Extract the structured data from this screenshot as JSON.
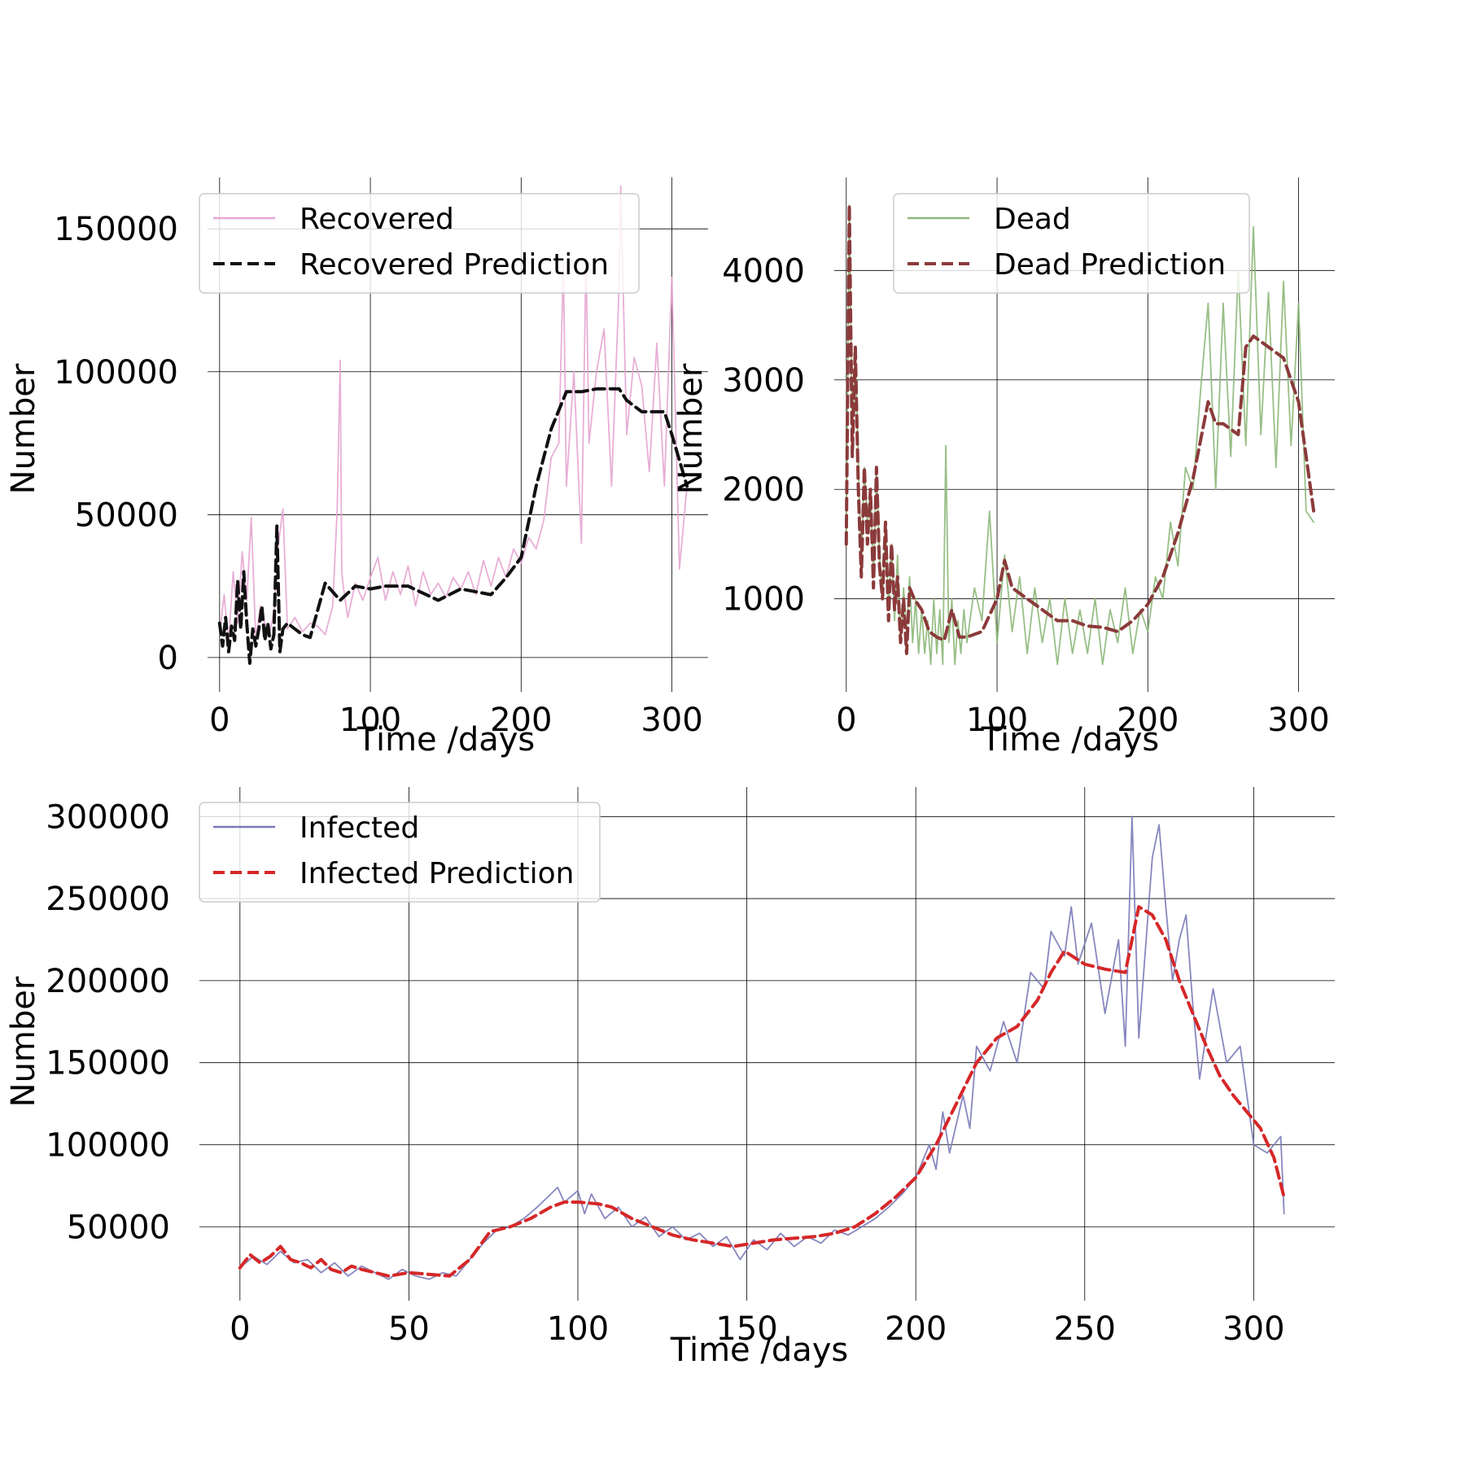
{
  "chart_data": [
    {
      "id": "recovered",
      "type": "line",
      "xlabel": "Time /days",
      "ylabel": "Number",
      "xlim": [
        -8,
        324
      ],
      "ylim": [
        -12000,
        168000
      ],
      "xticks": [
        0,
        100,
        200,
        300
      ],
      "xtick_labels": [
        "0",
        "100",
        "200",
        "300"
      ],
      "yticks": [
        0,
        50000,
        100000,
        150000
      ],
      "ytick_labels": [
        "0",
        "50000",
        "100000",
        "150000"
      ],
      "grid": true,
      "legend_position": "top-right",
      "series": [
        {
          "name": "Recovered",
          "color": "#e6a6d2",
          "style": "solid",
          "x": [
            0,
            3,
            6,
            9,
            12,
            15,
            18,
            21,
            24,
            27,
            30,
            33,
            36,
            39,
            42,
            45,
            50,
            55,
            60,
            65,
            70,
            75,
            78,
            80,
            81,
            82,
            85,
            90,
            95,
            100,
            105,
            110,
            115,
            120,
            125,
            130,
            135,
            140,
            145,
            150,
            155,
            160,
            165,
            170,
            175,
            180,
            185,
            190,
            195,
            200,
            205,
            210,
            215,
            220,
            225,
            228,
            230,
            235,
            240,
            243,
            245,
            250,
            255,
            260,
            265,
            266,
            270,
            275,
            280,
            285,
            290,
            295,
            300,
            305,
            310
          ],
          "y": [
            8000,
            22000,
            5000,
            30000,
            12000,
            37000,
            20000,
            49000,
            6000,
            18000,
            12000,
            8000,
            16000,
            40000,
            52000,
            10000,
            14000,
            9000,
            12000,
            11000,
            8000,
            18000,
            52000,
            104000,
            30000,
            25000,
            14000,
            26000,
            20000,
            28000,
            35000,
            20000,
            30000,
            22000,
            32000,
            18000,
            30000,
            22000,
            26000,
            21000,
            28000,
            24000,
            30000,
            22000,
            34000,
            25000,
            35000,
            28000,
            38000,
            33000,
            42000,
            38000,
            48000,
            70000,
            75000,
            138000,
            60000,
            100000,
            40000,
            140000,
            75000,
            100000,
            115000,
            60000,
            130000,
            165000,
            78000,
            105000,
            95000,
            65000,
            110000,
            60000,
            133000,
            31000,
            60000
          ]
        },
        {
          "name": "Recovered Prediction",
          "color": "#111111",
          "style": "dashed",
          "x": [
            0,
            2,
            4,
            6,
            8,
            10,
            12,
            14,
            16,
            18,
            20,
            22,
            24,
            26,
            28,
            30,
            32,
            34,
            36,
            38,
            40,
            42,
            45,
            50,
            55,
            60,
            70,
            80,
            90,
            100,
            110,
            125,
            145,
            160,
            180,
            190,
            200,
            210,
            220,
            230,
            240,
            250,
            265,
            270,
            280,
            295,
            300,
            310
          ],
          "y": [
            12000,
            4000,
            14000,
            2000,
            11000,
            6000,
            27000,
            10000,
            30000,
            12000,
            -2000,
            10000,
            4000,
            10000,
            18000,
            6000,
            12000,
            3000,
            8000,
            46000,
            2000,
            10000,
            12000,
            10000,
            8000,
            7000,
            26000,
            20000,
            25000,
            24000,
            25000,
            25000,
            20000,
            24000,
            22000,
            28000,
            35000,
            60000,
            80000,
            93000,
            93000,
            94000,
            94000,
            90000,
            86000,
            86000,
            78000,
            60000
          ]
        }
      ]
    },
    {
      "id": "dead",
      "type": "line",
      "xlabel": "Time /days",
      "ylabel": "Number",
      "xlim": [
        -8,
        324
      ],
      "ylim": [
        150,
        4850
      ],
      "xticks": [
        0,
        100,
        200,
        300
      ],
      "xtick_labels": [
        "0",
        "100",
        "200",
        "300"
      ],
      "yticks": [
        1000,
        2000,
        3000,
        4000
      ],
      "ytick_labels": [
        "1000",
        "2000",
        "3000",
        "4000"
      ],
      "grid": true,
      "legend_position": "top-right",
      "series": [
        {
          "name": "Dead",
          "color": "#8db87a",
          "style": "solid",
          "x": [
            0,
            2,
            4,
            6,
            8,
            10,
            12,
            14,
            16,
            18,
            20,
            22,
            24,
            26,
            28,
            30,
            32,
            34,
            36,
            38,
            40,
            42,
            44,
            46,
            48,
            50,
            52,
            54,
            56,
            58,
            60,
            62,
            64,
            66,
            68,
            70,
            72,
            74,
            76,
            78,
            80,
            85,
            90,
            95,
            100,
            105,
            110,
            115,
            120,
            125,
            130,
            135,
            140,
            145,
            150,
            155,
            160,
            165,
            170,
            175,
            180,
            185,
            190,
            195,
            200,
            205,
            210,
            215,
            220,
            225,
            230,
            235,
            240,
            245,
            250,
            255,
            260,
            265,
            270,
            275,
            280,
            285,
            290,
            295,
            300,
            305,
            310
          ],
          "y": [
            1600,
            4600,
            2500,
            3300,
            2300,
            1300,
            2200,
            1700,
            2000,
            1200,
            2200,
            1400,
            1000,
            1700,
            900,
            1500,
            800,
            1400,
            600,
            1100,
            700,
            1200,
            600,
            1000,
            500,
            900,
            500,
            800,
            400,
            1000,
            500,
            900,
            400,
            2400,
            600,
            1000,
            400,
            800,
            500,
            900,
            600,
            1100,
            800,
            1800,
            600,
            1400,
            700,
            1200,
            500,
            1100,
            600,
            1000,
            400,
            1000,
            500,
            900,
            500,
            1000,
            400,
            900,
            600,
            1100,
            500,
            900,
            700,
            1200,
            1000,
            1700,
            1300,
            2200,
            2000,
            2900,
            3700,
            2000,
            3700,
            2300,
            4000,
            2400,
            4400,
            2500,
            3800,
            2200,
            3900,
            2400,
            3700,
            1800,
            1700
          ]
        },
        {
          "name": "Dead Prediction",
          "color": "#8b3a3a",
          "style": "dashed",
          "x": [
            0,
            2,
            4,
            6,
            8,
            10,
            12,
            14,
            16,
            18,
            20,
            22,
            24,
            26,
            28,
            30,
            32,
            34,
            36,
            38,
            40,
            42,
            45,
            50,
            55,
            60,
            65,
            70,
            75,
            80,
            90,
            100,
            105,
            110,
            120,
            130,
            140,
            150,
            160,
            170,
            180,
            190,
            200,
            210,
            220,
            230,
            240,
            245,
            250,
            260,
            265,
            270,
            280,
            290,
            300,
            310
          ],
          "y": [
            1500,
            4600,
            2300,
            3300,
            2000,
            1200,
            2200,
            1500,
            2000,
            1100,
            2200,
            1300,
            1000,
            1700,
            800,
            1500,
            900,
            1200,
            600,
            1000,
            500,
            1100,
            1000,
            900,
            700,
            650,
            620,
            900,
            650,
            650,
            700,
            1000,
            1350,
            1100,
            1000,
            900,
            800,
            800,
            750,
            740,
            700,
            800,
            950,
            1200,
            1600,
            2100,
            2800,
            2600,
            2600,
            2500,
            3300,
            3400,
            3300,
            3200,
            2800,
            1800
          ]
        }
      ]
    },
    {
      "id": "infected",
      "type": "line",
      "xlabel": "Time /days",
      "ylabel": "Number",
      "xlim": [
        -12,
        324
      ],
      "ylim": [
        5000,
        318000
      ],
      "xticks": [
        0,
        50,
        100,
        150,
        200,
        250,
        300
      ],
      "xtick_labels": [
        "0",
        "50",
        "100",
        "150",
        "200",
        "250",
        "300"
      ],
      "yticks": [
        50000,
        100000,
        150000,
        200000,
        250000,
        300000
      ],
      "ytick_labels": [
        "50000",
        "100000",
        "150000",
        "200000",
        "250000",
        "300000"
      ],
      "grid": true,
      "legend_position": "top-left",
      "series": [
        {
          "name": "Infected",
          "color": "#7a7ab8",
          "style": "solid",
          "x": [
            0,
            4,
            8,
            12,
            16,
            20,
            24,
            28,
            32,
            36,
            40,
            44,
            48,
            52,
            56,
            60,
            64,
            68,
            72,
            76,
            80,
            84,
            88,
            92,
            94,
            96,
            100,
            102,
            104,
            108,
            112,
            116,
            120,
            124,
            128,
            132,
            136,
            140,
            144,
            148,
            152,
            156,
            160,
            164,
            168,
            172,
            176,
            180,
            184,
            188,
            192,
            196,
            200,
            204,
            206,
            208,
            210,
            214,
            216,
            218,
            222,
            226,
            230,
            234,
            238,
            240,
            244,
            246,
            248,
            252,
            256,
            260,
            262,
            264,
            266,
            268,
            270,
            272,
            274,
            276,
            278,
            280,
            282,
            284,
            288,
            292,
            296,
            300,
            304,
            308,
            309
          ],
          "y": [
            25000,
            32000,
            27000,
            35000,
            28000,
            30000,
            22000,
            28000,
            20000,
            26000,
            22000,
            18000,
            24000,
            20000,
            18000,
            22000,
            20000,
            30000,
            40000,
            48000,
            50000,
            55000,
            62000,
            70000,
            74000,
            65000,
            72000,
            58000,
            70000,
            55000,
            62000,
            50000,
            56000,
            44000,
            50000,
            42000,
            46000,
            38000,
            44000,
            30000,
            42000,
            36000,
            46000,
            38000,
            44000,
            40000,
            48000,
            45000,
            50000,
            55000,
            62000,
            70000,
            80000,
            100000,
            85000,
            120000,
            95000,
            130000,
            110000,
            160000,
            145000,
            175000,
            150000,
            205000,
            195000,
            230000,
            215000,
            245000,
            210000,
            235000,
            180000,
            225000,
            160000,
            300000,
            165000,
            220000,
            275000,
            295000,
            245000,
            200000,
            225000,
            240000,
            185000,
            140000,
            195000,
            150000,
            160000,
            100000,
            95000,
            105000,
            58000
          ]
        },
        {
          "name": "Infected Prediction",
          "color": "#d62728",
          "style": "dashed",
          "x": [
            0,
            3,
            6,
            9,
            12,
            15,
            18,
            21,
            24,
            27,
            30,
            33,
            36,
            40,
            44,
            50,
            56,
            62,
            68,
            74,
            80,
            86,
            92,
            96,
            100,
            106,
            110,
            116,
            122,
            128,
            134,
            140,
            146,
            152,
            158,
            164,
            170,
            176,
            182,
            188,
            194,
            200,
            206,
            212,
            218,
            224,
            230,
            236,
            240,
            244,
            250,
            256,
            262,
            266,
            270,
            274,
            278,
            282,
            286,
            290,
            294,
            298,
            302,
            306,
            309
          ],
          "y": [
            25000,
            33000,
            28000,
            32000,
            38000,
            30000,
            28000,
            25000,
            30000,
            24000,
            22000,
            26000,
            24000,
            22000,
            20000,
            22000,
            21000,
            20000,
            30000,
            47000,
            50000,
            55000,
            62000,
            65000,
            65000,
            64000,
            62000,
            55000,
            50000,
            45000,
            42000,
            40000,
            38000,
            40000,
            42000,
            43000,
            44000,
            46000,
            50000,
            58000,
            68000,
            80000,
            100000,
            125000,
            150000,
            165000,
            172000,
            188000,
            205000,
            218000,
            210000,
            207000,
            205000,
            245000,
            240000,
            225000,
            200000,
            180000,
            160000,
            142000,
            130000,
            120000,
            110000,
            92000,
            68000
          ]
        }
      ]
    }
  ]
}
